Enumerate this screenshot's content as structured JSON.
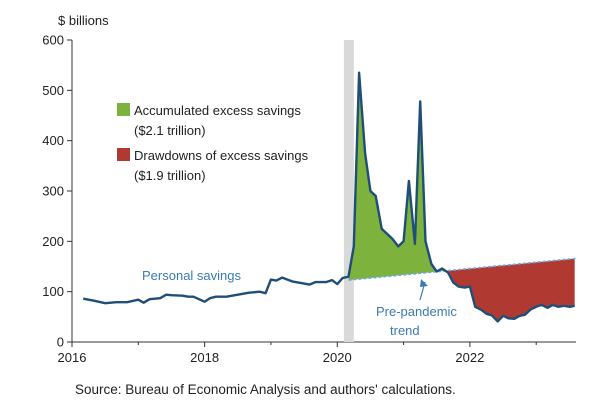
{
  "chart_data": {
    "type": "line",
    "ylabel": "$ billions",
    "ylim": [
      0,
      600
    ],
    "yticks": [
      0,
      100,
      200,
      300,
      400,
      500,
      600
    ],
    "xlim": [
      2016,
      2023.6
    ],
    "xticks": [
      2016,
      2018,
      2020,
      2022
    ],
    "recession_shading": {
      "x0": 2020.1,
      "x1": 2020.25
    },
    "series": [
      {
        "name": "Personal savings",
        "color": "#1f4e79",
        "x": [
          2016.17,
          2016.33,
          2016.5,
          2016.67,
          2016.83,
          2017.0,
          2017.08,
          2017.17,
          2017.33,
          2017.42,
          2017.5,
          2017.67,
          2017.75,
          2017.83,
          2018.0,
          2018.08,
          2018.17,
          2018.33,
          2018.5,
          2018.67,
          2018.83,
          2018.92,
          2019.0,
          2019.08,
          2019.17,
          2019.33,
          2019.5,
          2019.58,
          2019.67,
          2019.83,
          2019.92,
          2020.0,
          2020.08,
          2020.17,
          2020.25,
          2020.33,
          2020.42,
          2020.5,
          2020.58,
          2020.67,
          2020.75,
          2020.83,
          2020.92,
          2021.0,
          2021.08,
          2021.17,
          2021.25,
          2021.33,
          2021.42,
          2021.5,
          2021.58,
          2021.67,
          2021.75,
          2021.83,
          2021.92,
          2022.0,
          2022.08,
          2022.17,
          2022.25,
          2022.33,
          2022.42,
          2022.5,
          2022.58,
          2022.67,
          2022.75,
          2022.83,
          2022.92,
          2023.0,
          2023.08,
          2023.17,
          2023.25,
          2023.33,
          2023.42,
          2023.5,
          2023.58
        ],
        "y": [
          86,
          82,
          77,
          79,
          79,
          84,
          78,
          85,
          87,
          94,
          93,
          92,
          90,
          90,
          80,
          87,
          90,
          90,
          94,
          98,
          100,
          97,
          124,
          122,
          128,
          120,
          116,
          114,
          119,
          119,
          123,
          115,
          127,
          130,
          190,
          535,
          375,
          300,
          290,
          225,
          215,
          205,
          190,
          200,
          320,
          195,
          478,
          200,
          155,
          140,
          146,
          138,
          118,
          110,
          108,
          110,
          70,
          64,
          56,
          53,
          41,
          52,
          47,
          46,
          52,
          54,
          65,
          70,
          74,
          68,
          74,
          70,
          72,
          70,
          72
        ]
      }
    ],
    "trend": {
      "name": "Pre-pandemic trend",
      "x": [
        2020.17,
        2023.6
      ],
      "y": [
        123,
        166
      ]
    },
    "areas": [
      {
        "name": "Accumulated excess savings",
        "amount": "($2.1 trillion)",
        "color": "#7db23d"
      },
      {
        "name": "Drawdowns of excess savings",
        "amount": "($1.9 trillion)",
        "color": "#b03a32"
      }
    ],
    "annotations": {
      "series_label": "Personal savings",
      "trend_label_line1": "Pre-pandemic",
      "trend_label_line2": "trend"
    },
    "source": "Source: Bureau of Economic Analysis and authors' calculations."
  }
}
